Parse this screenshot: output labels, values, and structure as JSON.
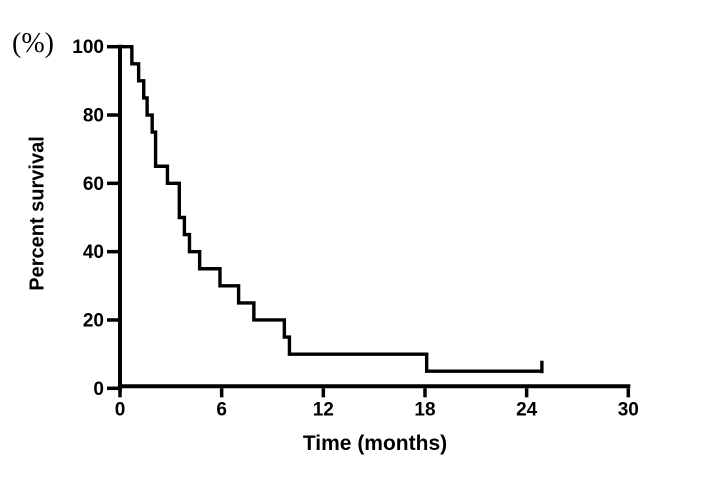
{
  "figure": {
    "unit_label": "(%)",
    "y_axis_label": "Percent survival",
    "x_axis_label": "Time (months)"
  },
  "chart_data": {
    "type": "line",
    "subtype": "kaplan-meier-step-curve",
    "title": "",
    "xlabel": "Time (months)",
    "ylabel": "Percent survival (%)",
    "xlim": [
      0,
      30
    ],
    "ylim": [
      0,
      100
    ],
    "x_ticks": [
      0,
      6,
      12,
      18,
      24,
      30
    ],
    "y_ticks": [
      0,
      20,
      40,
      60,
      80,
      100
    ],
    "grid": false,
    "legend": "none",
    "line_color": "#000000",
    "series": [
      {
        "name": "Percent survival",
        "steps": [
          {
            "time_months": 0.0,
            "percent": 100
          },
          {
            "time_months": 0.7,
            "percent": 95
          },
          {
            "time_months": 1.1,
            "percent": 90
          },
          {
            "time_months": 1.4,
            "percent": 85
          },
          {
            "time_months": 1.6,
            "percent": 80
          },
          {
            "time_months": 1.9,
            "percent": 75
          },
          {
            "time_months": 2.1,
            "percent": 65
          },
          {
            "time_months": 2.8,
            "percent": 60
          },
          {
            "time_months": 3.5,
            "percent": 50
          },
          {
            "time_months": 3.8,
            "percent": 45
          },
          {
            "time_months": 4.1,
            "percent": 40
          },
          {
            "time_months": 4.7,
            "percent": 35
          },
          {
            "time_months": 5.9,
            "percent": 30
          },
          {
            "time_months": 7.0,
            "percent": 25
          },
          {
            "time_months": 7.9,
            "percent": 20
          },
          {
            "time_months": 9.7,
            "percent": 15
          },
          {
            "time_months": 10.0,
            "percent": 10
          },
          {
            "time_months": 18.1,
            "percent": 5
          }
        ],
        "end": {
          "time_months": 24.9,
          "percent": 5,
          "censored": true
        }
      }
    ]
  }
}
